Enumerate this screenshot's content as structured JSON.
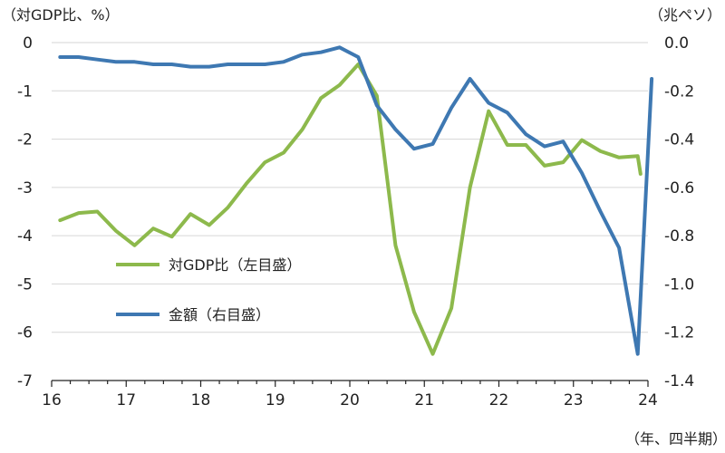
{
  "chart_data": {
    "type": "line",
    "left_unit_label": "（対GDP比、%）",
    "right_unit_label": "（兆ペソ）",
    "x_unit_label": "（年、四半期）",
    "x_ticks": [
      "16",
      "17",
      "18",
      "19",
      "20",
      "21",
      "22",
      "23",
      "24"
    ],
    "left_axis": {
      "ticks": [
        "0",
        "-1",
        "-2",
        "-3",
        "-4",
        "-5",
        "-6",
        "-7"
      ],
      "range": [
        -7,
        0
      ]
    },
    "right_axis": {
      "ticks": [
        "0.0",
        "-0.2",
        "-0.4",
        "-0.6",
        "-0.8",
        "-1.0",
        "-1.2",
        "-1.4"
      ],
      "range": [
        -1.4,
        0
      ]
    },
    "grid": true,
    "legend_placement": "center-left",
    "x": [
      "2016Q1",
      "2016Q2",
      "2016Q3",
      "2016Q4",
      "2017Q1",
      "2017Q2",
      "2017Q3",
      "2017Q4",
      "2018Q1",
      "2018Q2",
      "2018Q3",
      "2018Q4",
      "2019Q1",
      "2019Q2",
      "2019Q3",
      "2019Q4",
      "2020Q1",
      "2020Q2",
      "2020Q3",
      "2020Q4",
      "2021Q1",
      "2021Q2",
      "2021Q3",
      "2021Q4",
      "2022Q1",
      "2022Q2",
      "2022Q3",
      "2022Q4",
      "2023Q1",
      "2023Q2",
      "2023Q3",
      "2023Q4",
      "2024Q1"
    ],
    "series": [
      {
        "name": "対GDP比（左目盛）",
        "axis": "left",
        "color": "#8db94c",
        "values": [
          -3.68,
          -3.53,
          -3.5,
          -3.9,
          -4.2,
          -3.85,
          -4.02,
          -3.55,
          -3.78,
          -3.42,
          -2.92,
          -2.48,
          -2.28,
          -1.8,
          -1.15,
          -0.88,
          -0.45,
          -1.1,
          -4.2,
          -5.58,
          -6.45,
          -5.5,
          -3.0,
          -1.42,
          -2.12,
          -2.12,
          -2.55,
          -2.48,
          -2.02,
          -2.25,
          -2.38,
          -2.35,
          -2.72
        ],
        "values_end_at": "2023Q4+"
      },
      {
        "name": "金額（右目盛）",
        "axis": "right",
        "color": "#3e78b2",
        "values": [
          -0.06,
          -0.06,
          -0.07,
          -0.08,
          -0.08,
          -0.09,
          -0.09,
          -0.1,
          -0.1,
          -0.09,
          -0.09,
          -0.09,
          -0.08,
          -0.05,
          -0.04,
          -0.02,
          -0.06,
          -0.26,
          -0.36,
          -0.44,
          -0.42,
          -0.27,
          -0.15,
          -0.25,
          -0.29,
          -0.38,
          -0.43,
          -0.41,
          -0.54,
          -0.7,
          -0.85,
          -1.29,
          -0.15
        ]
      }
    ]
  }
}
